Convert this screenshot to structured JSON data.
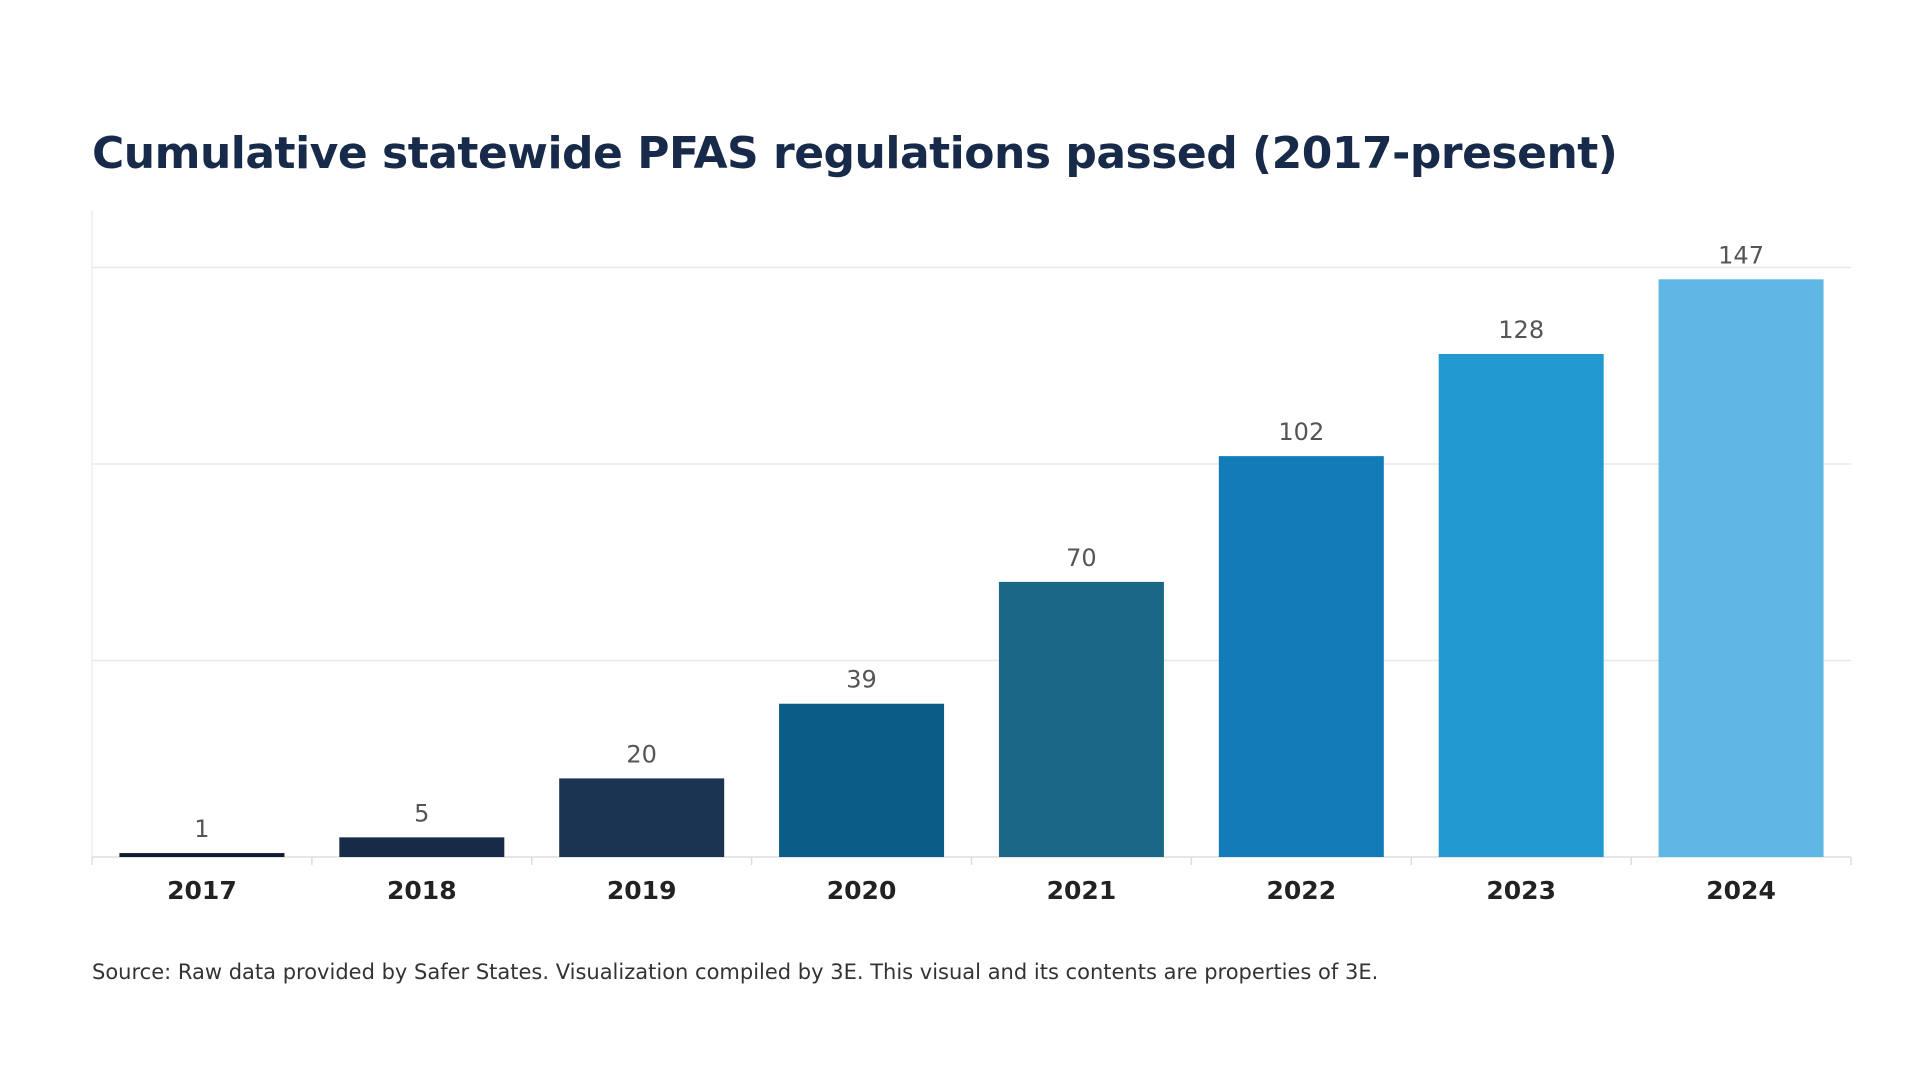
{
  "chart_data": {
    "type": "bar",
    "title": "Cumulative statewide PFAS regulations passed (2017-present)",
    "categories": [
      "2017",
      "2018",
      "2019",
      "2020",
      "2021",
      "2022",
      "2023",
      "2024"
    ],
    "values": [
      1,
      5,
      20,
      39,
      70,
      102,
      128,
      147
    ],
    "colors": [
      "#121a33",
      "#172a48",
      "#1a3452",
      "#0b5c87",
      "#1a6787",
      "#127cb8",
      "#2399d2",
      "#5fb8e3"
    ],
    "xlabel": "",
    "ylabel": "",
    "ylim": [
      0,
      155
    ],
    "gridlines": [
      50,
      100,
      150
    ],
    "grid": true,
    "y_tick_labels_shown": false,
    "data_labels": true,
    "source": "Source: Raw data provided by Safer States. Visualization compiled by 3E. This visual and its contents are properties of 3E."
  }
}
